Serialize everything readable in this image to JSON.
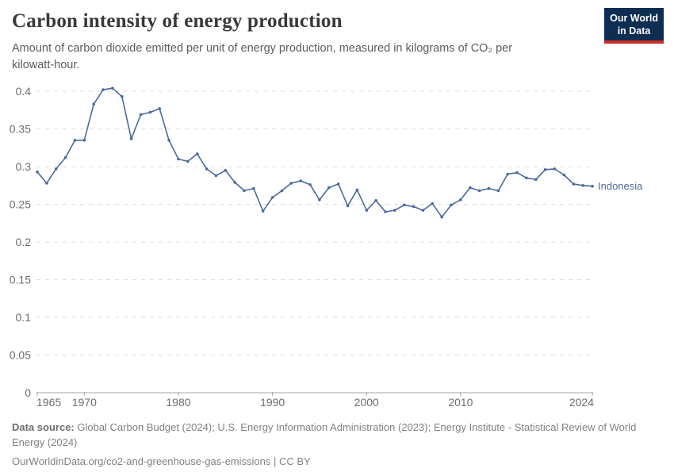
{
  "header": {
    "title": "Carbon intensity of energy production",
    "subtitle": "Amount of carbon dioxide emitted per unit of energy production, measured in kilograms of CO₂ per kilowatt-hour.",
    "logo": {
      "line1": "Our World",
      "line2": "in Data"
    }
  },
  "chart_data": {
    "type": "line",
    "title": "Carbon intensity of energy production",
    "xlabel": "",
    "ylabel": "",
    "x_range": [
      1965,
      2024
    ],
    "ylim": [
      0,
      0.4
    ],
    "xtick_values": [
      1965,
      1970,
      1980,
      1990,
      2000,
      2010,
      2024
    ],
    "xtick_labels": [
      "1965",
      "1970",
      "1980",
      "1990",
      "2000",
      "2010",
      "2024"
    ],
    "ytick_values": [
      0,
      0.05,
      0.1,
      0.15,
      0.2,
      0.25,
      0.3,
      0.35,
      0.4
    ],
    "ytick_labels": [
      "0",
      "0.05",
      "0.1",
      "0.15",
      "0.2",
      "0.25",
      "0.3",
      "0.35",
      "0.4"
    ],
    "grid": "horizontal-dashed",
    "legend_position": "end-of-line-label",
    "series": [
      {
        "name": "Indonesia",
        "color": "#4C6A9C",
        "x": [
          1965,
          1966,
          1967,
          1968,
          1969,
          1970,
          1971,
          1972,
          1973,
          1974,
          1975,
          1976,
          1977,
          1978,
          1979,
          1980,
          1981,
          1982,
          1983,
          1984,
          1985,
          1986,
          1987,
          1988,
          1989,
          1990,
          1991,
          1992,
          1993,
          1994,
          1995,
          1996,
          1997,
          1998,
          1999,
          2000,
          2001,
          2002,
          2003,
          2004,
          2005,
          2006,
          2007,
          2008,
          2009,
          2010,
          2011,
          2012,
          2013,
          2014,
          2015,
          2016,
          2017,
          2018,
          2019,
          2020,
          2021,
          2022,
          2023,
          2024
        ],
        "values": [
          0.293,
          0.278,
          0.297,
          0.312,
          0.335,
          0.335,
          0.383,
          0.402,
          0.404,
          0.393,
          0.337,
          0.369,
          0.372,
          0.377,
          0.335,
          0.31,
          0.307,
          0.317,
          0.297,
          0.288,
          0.295,
          0.279,
          0.268,
          0.271,
          0.241,
          0.259,
          0.268,
          0.278,
          0.281,
          0.276,
          0.256,
          0.272,
          0.277,
          0.248,
          0.269,
          0.242,
          0.255,
          0.24,
          0.242,
          0.249,
          0.247,
          0.242,
          0.251,
          0.233,
          0.249,
          0.256,
          0.272,
          0.268,
          0.271,
          0.268,
          0.29,
          0.292,
          0.285,
          0.283,
          0.296,
          0.297,
          0.289,
          0.277,
          0.275,
          0.274
        ]
      }
    ]
  },
  "footer": {
    "data_source_label": "Data source:",
    "data_source_text": " Global Carbon Budget (2024); U.S. Energy Information Administration (2023); Energy Institute - Statistical Review of World Energy (2024)",
    "url": "OurWorldinData.org/co2-and-greenhouse-gas-emissions",
    "license": " | CC BY"
  },
  "colors": {
    "series_line": "#4C6A9C",
    "logo_bg": "#0d2d52",
    "logo_accent": "#cf2d24",
    "grid": "#dcdcdc",
    "axis_line": "#a5a5a5",
    "axis_text": "#6d6d6d",
    "title_text": "#383838",
    "subtitle_text": "#5c5c5c",
    "footer_text": "#818181"
  }
}
